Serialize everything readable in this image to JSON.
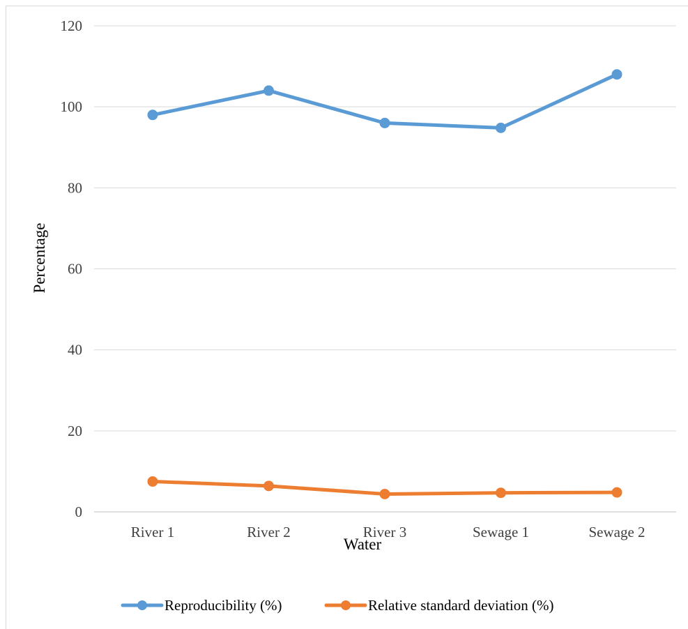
{
  "chart_data": {
    "type": "line",
    "title": "",
    "xlabel": "Water",
    "ylabel": "Percentage",
    "categories": [
      "River 1",
      "River 2",
      "River 3",
      "Sewage 1",
      "Sewage 2"
    ],
    "ylim": [
      0,
      120
    ],
    "yticks": [
      0,
      20,
      40,
      60,
      80,
      100,
      120
    ],
    "ytick_labels": [
      "0",
      "20",
      "40",
      "60",
      "80",
      "100",
      "120"
    ],
    "grid": "horizontal",
    "legend_position": "bottom",
    "series": [
      {
        "name": "Reproducibility (%)",
        "values": [
          98,
          104,
          96,
          94.8,
          108
        ],
        "color": "#5B9BD5",
        "marker": "circle"
      },
      {
        "name": "Relative standard deviation (%)",
        "values": [
          7.5,
          6.4,
          4.4,
          4.7,
          4.8
        ],
        "color": "#ED7D31",
        "marker": "circle"
      }
    ]
  }
}
